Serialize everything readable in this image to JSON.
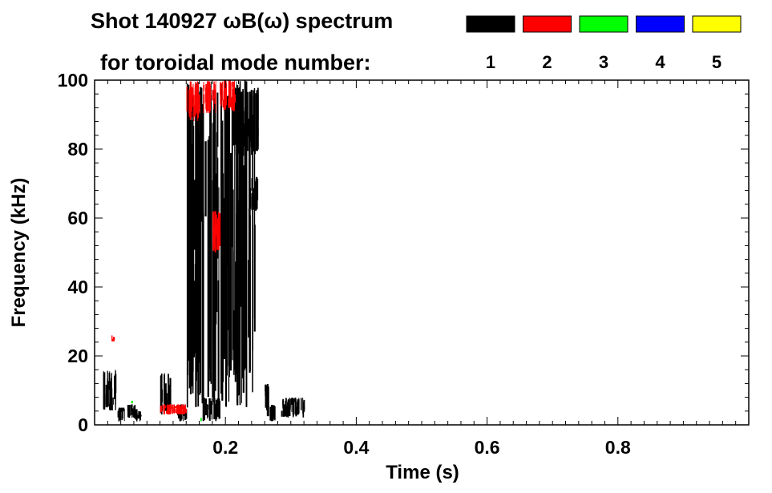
{
  "title_line1": "Shot 140927 ωB(ω) spectrum",
  "title_line2": "for toroidal mode number:",
  "chart_data": {
    "type": "heatmap",
    "title": "Shot 140927 ωB(ω) spectrum",
    "xlabel": "Time (s)",
    "ylabel": "Frequency (kHz)",
    "xlim": [
      0.0,
      1.0
    ],
    "ylim": [
      0,
      100
    ],
    "xticks": [
      0.2,
      0.4,
      0.6,
      0.8
    ],
    "xtick_labels": [
      "0.2",
      "0.4",
      "0.6",
      "0.8"
    ],
    "yticks": [
      0,
      20,
      40,
      60,
      80,
      100
    ],
    "ytick_labels": [
      "0",
      "20",
      "40",
      "60",
      "80",
      "100"
    ],
    "grid": false,
    "legend": {
      "placement": "top-right",
      "items": [
        {
          "label": "1",
          "color": "#000000"
        },
        {
          "label": "2",
          "color": "#ff0000"
        },
        {
          "label": "3",
          "color": "#00ff00"
        },
        {
          "label": "4",
          "color": "#0000ff"
        },
        {
          "label": "5",
          "color": "#ffff00"
        }
      ]
    },
    "series": [
      {
        "name": "1",
        "color": "#000000",
        "regions": [
          {
            "t": [
              0.012,
              0.035
            ],
            "f": [
              4,
              16
            ]
          },
          {
            "t": [
              0.035,
              0.045
            ],
            "f": [
              1,
              5
            ]
          },
          {
            "t": [
              0.05,
              0.065
            ],
            "f": [
              2,
              6
            ]
          },
          {
            "t": [
              0.06,
              0.07
            ],
            "f": [
              1,
              4
            ]
          },
          {
            "t": [
              0.1,
              0.115
            ],
            "f": [
              3,
              15
            ]
          },
          {
            "t": [
              0.125,
              0.14
            ],
            "f": [
              1,
              6
            ]
          },
          {
            "t": [
              0.14,
              0.245
            ],
            "f": [
              5,
              100
            ]
          },
          {
            "t": [
              0.165,
              0.19
            ],
            "f": [
              1,
              8
            ]
          },
          {
            "t": [
              0.21,
              0.25
            ],
            "f": [
              78,
              98
            ]
          },
          {
            "t": [
              0.235,
              0.25
            ],
            "f": [
              62,
              72
            ]
          },
          {
            "t": [
              0.265,
              0.275
            ],
            "f": [
              1,
              6
            ]
          },
          {
            "t": [
              0.285,
              0.32
            ],
            "f": [
              2,
              8
            ]
          },
          {
            "t": [
              0.26,
              0.265
            ],
            "f": [
              2,
              12
            ]
          }
        ]
      },
      {
        "name": "2",
        "color": "#ff0000",
        "regions": [
          {
            "t": [
              0.14,
              0.16
            ],
            "f": [
              88,
              100
            ]
          },
          {
            "t": [
              0.165,
              0.185
            ],
            "f": [
              90,
              100
            ]
          },
          {
            "t": [
              0.19,
              0.215
            ],
            "f": [
              91,
              100
            ]
          },
          {
            "t": [
              0.1,
              0.14
            ],
            "f": [
              3,
              6
            ]
          },
          {
            "t": [
              0.025,
              0.03
            ],
            "f": [
              24,
              26
            ]
          },
          {
            "t": [
              0.18,
              0.19
            ],
            "f": [
              50,
              62
            ]
          }
        ]
      },
      {
        "name": "3",
        "color": "#00ff00",
        "regions": [
          {
            "t": [
              0.055,
              0.058
            ],
            "f": [
              6,
              7
            ]
          },
          {
            "t": [
              0.16,
              0.163
            ],
            "f": [
              1,
              2
            ]
          }
        ]
      },
      {
        "name": "4",
        "color": "#0000ff",
        "regions": []
      },
      {
        "name": "5",
        "color": "#ffff00",
        "regions": []
      }
    ]
  }
}
